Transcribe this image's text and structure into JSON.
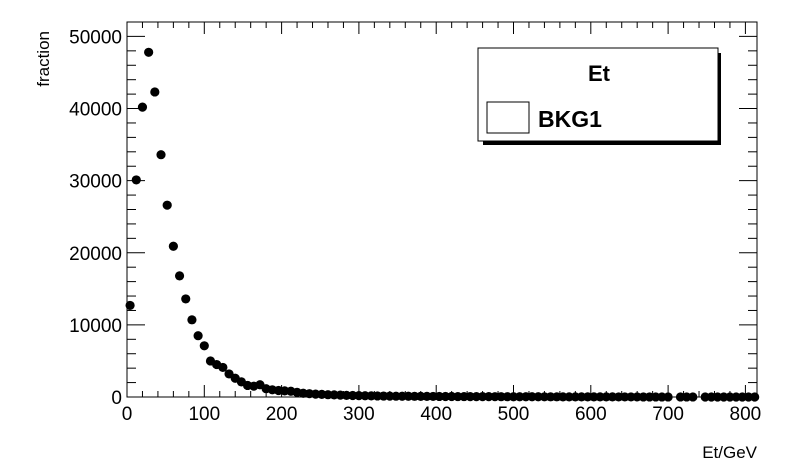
{
  "chart_data": {
    "type": "scatter",
    "title": "",
    "xlabel": "Et/GeV",
    "ylabel": "fraction",
    "xlim": [
      0,
      815
    ],
    "ylim": [
      0,
      52000
    ],
    "xticks": [
      0,
      100,
      200,
      300,
      400,
      500,
      600,
      700,
      800
    ],
    "yticks": [
      0,
      10000,
      20000,
      30000,
      40000,
      50000
    ],
    "xtick_labels": [
      "0",
      "100",
      "200",
      "300",
      "400",
      "500",
      "600",
      "700",
      "800"
    ],
    "ytick_labels": [
      "0",
      "10000",
      "20000",
      "30000",
      "40000",
      "50000"
    ],
    "grid": false,
    "legend": {
      "position": "top-right",
      "title": "Et",
      "entries": [
        "BKG1"
      ]
    },
    "series": [
      {
        "name": "BKG1",
        "marker": "circle",
        "color": "#000000",
        "x": [
          4,
          12,
          20,
          28,
          36,
          44,
          52,
          60,
          68,
          76,
          84,
          92,
          100,
          108,
          116,
          124,
          132,
          140,
          148,
          156,
          164,
          172,
          180,
          188,
          196,
          204,
          212,
          220,
          228,
          236,
          244,
          252,
          260,
          268,
          276,
          284,
          292,
          300,
          308,
          316,
          324,
          332,
          340,
          348,
          356,
          364,
          372,
          380,
          388,
          396,
          404,
          412,
          420,
          428,
          436,
          444,
          452,
          460,
          468,
          476,
          484,
          492,
          500,
          508,
          516,
          524,
          532,
          540,
          548,
          556,
          564,
          572,
          580,
          588,
          596,
          604,
          612,
          620,
          628,
          636,
          644,
          652,
          660,
          668,
          676,
          684,
          692,
          700,
          716,
          724,
          732,
          748,
          756,
          764,
          772,
          780,
          788,
          796,
          804,
          812
        ],
        "y": [
          12700,
          30100,
          40200,
          47800,
          42300,
          33600,
          26600,
          20900,
          16800,
          13600,
          10700,
          8500,
          7100,
          5000,
          4500,
          4100,
          3200,
          2600,
          2100,
          1600,
          1500,
          1700,
          1150,
          1000,
          900,
          850,
          800,
          650,
          520,
          460,
          400,
          360,
          320,
          290,
          260,
          230,
          210,
          190,
          175,
          160,
          145,
          130,
          120,
          110,
          105,
          100,
          95,
          90,
          85,
          80,
          75,
          70,
          65,
          60,
          58,
          55,
          52,
          50,
          48,
          45,
          43,
          40,
          38,
          36,
          34,
          32,
          30,
          28,
          26,
          24,
          22,
          20,
          19,
          18,
          17,
          16,
          15,
          14,
          13,
          12,
          11,
          10,
          10,
          9,
          9,
          8,
          8,
          7,
          7,
          6,
          6,
          5,
          5,
          5,
          4,
          4,
          4,
          3,
          3,
          3
        ]
      }
    ]
  }
}
